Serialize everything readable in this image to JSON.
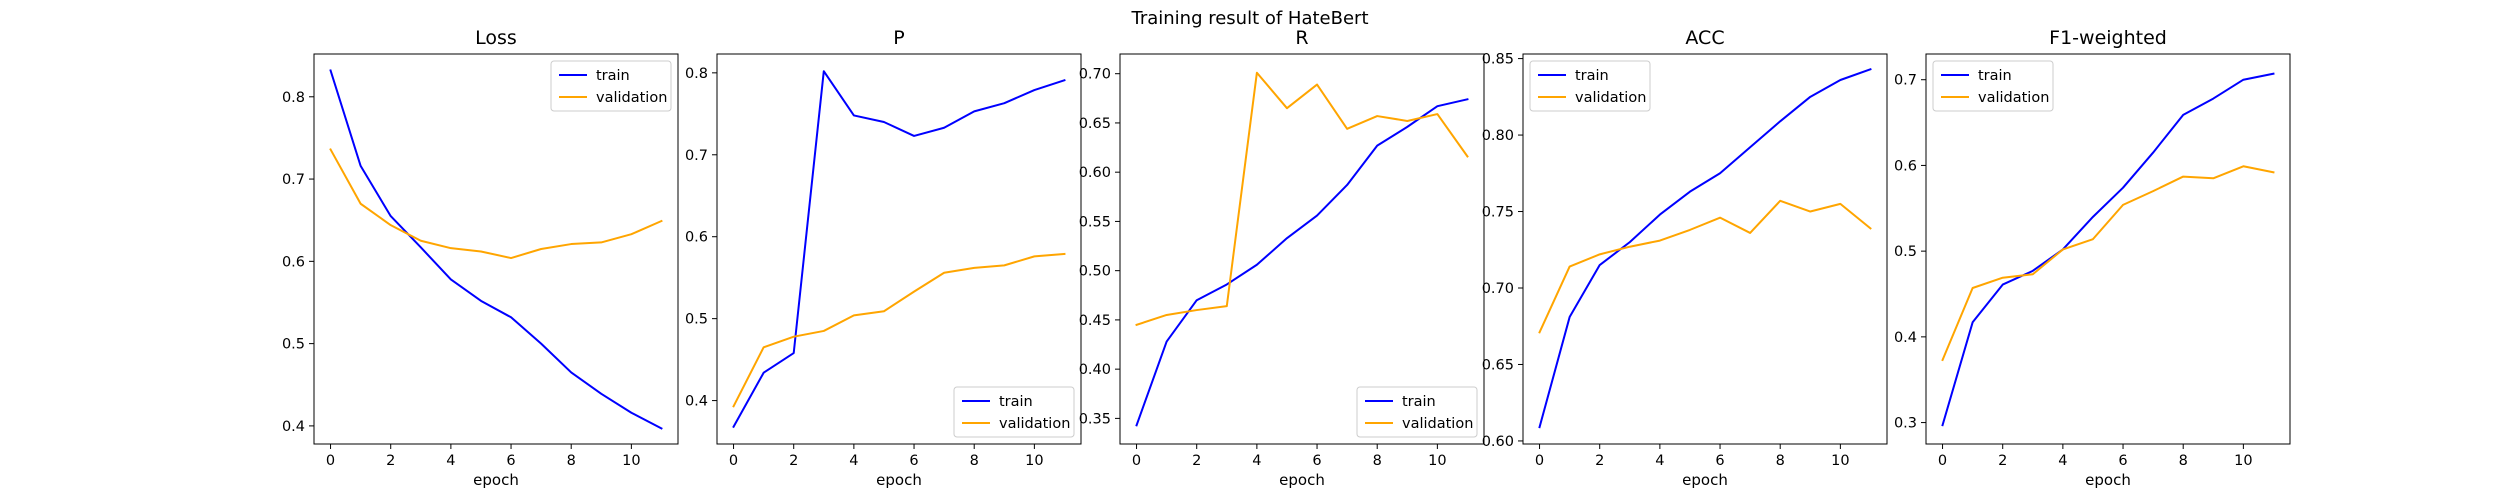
{
  "figure_title": "Training result of HateBert",
  "colors": {
    "train": "#0000ff",
    "validation": "#ffa500"
  },
  "chart_data": [
    {
      "type": "line",
      "title": "Loss",
      "xlabel": "epoch",
      "ylabel": "",
      "x": [
        0,
        1,
        2,
        3,
        4,
        5,
        6,
        7,
        8,
        9,
        10,
        11
      ],
      "xlim": [
        -0.55,
        11.55
      ],
      "ylim": [
        0.378,
        0.852
      ],
      "xticks": [
        "0",
        "2",
        "4",
        "6",
        "8",
        "10"
      ],
      "xtick_values": [
        0,
        2,
        4,
        6,
        8,
        10
      ],
      "yticks": [
        "0.4",
        "0.5",
        "0.6",
        "0.7",
        "0.8"
      ],
      "ytick_values": [
        0.4,
        0.5,
        0.6,
        0.7,
        0.8
      ],
      "legend": "top-right",
      "series": [
        {
          "name": "train",
          "color": "#0000ff",
          "values": [
            0.832,
            0.716,
            0.655,
            0.617,
            0.578,
            0.552,
            0.532,
            0.5,
            0.465,
            0.439,
            0.416,
            0.397
          ]
        },
        {
          "name": "validation",
          "color": "#ffa500",
          "values": [
            0.736,
            0.67,
            0.644,
            0.625,
            0.616,
            0.612,
            0.604,
            0.615,
            0.621,
            0.623,
            0.633,
            0.649
          ]
        }
      ]
    },
    {
      "type": "line",
      "title": "P",
      "xlabel": "epoch",
      "ylabel": "",
      "x": [
        0,
        1,
        2,
        3,
        4,
        5,
        6,
        7,
        8,
        9,
        10,
        11
      ],
      "xlim": [
        -0.55,
        11.55
      ],
      "ylim": [
        0.347,
        0.823
      ],
      "xticks": [
        "0",
        "2",
        "4",
        "6",
        "8",
        "10"
      ],
      "xtick_values": [
        0,
        2,
        4,
        6,
        8,
        10
      ],
      "yticks": [
        "0.4",
        "0.5",
        "0.6",
        "0.7",
        "0.8"
      ],
      "ytick_values": [
        0.4,
        0.5,
        0.6,
        0.7,
        0.8
      ],
      "legend": "bottom-right",
      "series": [
        {
          "name": "train",
          "color": "#0000ff",
          "values": [
            0.368,
            0.434,
            0.458,
            0.802,
            0.748,
            0.74,
            0.723,
            0.733,
            0.753,
            0.763,
            0.779,
            0.791
          ]
        },
        {
          "name": "validation",
          "color": "#ffa500",
          "values": [
            0.393,
            0.465,
            0.478,
            0.485,
            0.504,
            0.509,
            0.533,
            0.556,
            0.562,
            0.565,
            0.576,
            0.579
          ]
        }
      ]
    },
    {
      "type": "line",
      "title": "R",
      "xlabel": "epoch",
      "ylabel": "",
      "x": [
        0,
        1,
        2,
        3,
        4,
        5,
        6,
        7,
        8,
        9,
        10,
        11
      ],
      "xlim": [
        -0.55,
        11.55
      ],
      "ylim": [
        0.324,
        0.72
      ],
      "xticks": [
        "0",
        "2",
        "4",
        "6",
        "8",
        "10"
      ],
      "xtick_values": [
        0,
        2,
        4,
        6,
        8,
        10
      ],
      "yticks": [
        "0.35",
        "0.40",
        "0.45",
        "0.50",
        "0.55",
        "0.60",
        "0.65",
        "0.70"
      ],
      "ytick_values": [
        0.35,
        0.4,
        0.45,
        0.5,
        0.55,
        0.6,
        0.65,
        0.7
      ],
      "legend": "bottom-right",
      "series": [
        {
          "name": "train",
          "color": "#0000ff",
          "values": [
            0.343,
            0.428,
            0.47,
            0.486,
            0.506,
            0.533,
            0.556,
            0.587,
            0.627,
            0.646,
            0.667,
            0.674
          ]
        },
        {
          "name": "validation",
          "color": "#ffa500",
          "values": [
            0.445,
            0.455,
            0.46,
            0.464,
            0.701,
            0.665,
            0.689,
            0.644,
            0.657,
            0.652,
            0.659,
            0.616
          ]
        }
      ]
    },
    {
      "type": "line",
      "title": "ACC",
      "xlabel": "epoch",
      "ylabel": "",
      "x": [
        0,
        1,
        2,
        3,
        4,
        5,
        6,
        7,
        8,
        9,
        10,
        11
      ],
      "xlim": [
        -0.55,
        11.55
      ],
      "ylim": [
        0.598,
        0.853
      ],
      "xticks": [
        "0",
        "2",
        "4",
        "6",
        "8",
        "10"
      ],
      "xtick_values": [
        0,
        2,
        4,
        6,
        8,
        10
      ],
      "yticks": [
        "0.60",
        "0.65",
        "0.70",
        "0.75",
        "0.80",
        "0.85"
      ],
      "ytick_values": [
        0.6,
        0.65,
        0.7,
        0.75,
        0.8,
        0.85
      ],
      "legend": "top-left",
      "series": [
        {
          "name": "train",
          "color": "#0000ff",
          "values": [
            0.609,
            0.681,
            0.715,
            0.73,
            0.748,
            0.763,
            0.775,
            0.792,
            0.809,
            0.825,
            0.836,
            0.843
          ]
        },
        {
          "name": "validation",
          "color": "#ffa500",
          "values": [
            0.671,
            0.714,
            0.722,
            0.727,
            0.731,
            0.738,
            0.746,
            0.736,
            0.757,
            0.75,
            0.755,
            0.739
          ]
        }
      ]
    },
    {
      "type": "line",
      "title": "F1-weighted",
      "xlabel": "epoch",
      "ylabel": "",
      "x": [
        0,
        1,
        2,
        3,
        4,
        5,
        6,
        7,
        8,
        9,
        10,
        11
      ],
      "xlim": [
        -0.55,
        11.55
      ],
      "ylim": [
        0.275,
        0.73
      ],
      "xticks": [
        "0",
        "2",
        "4",
        "6",
        "8",
        "10"
      ],
      "xtick_values": [
        0,
        2,
        4,
        6,
        8,
        10
      ],
      "yticks": [
        "0.3",
        "0.4",
        "0.5",
        "0.6",
        "0.7"
      ],
      "ytick_values": [
        0.3,
        0.4,
        0.5,
        0.6,
        0.7
      ],
      "legend": "top-left",
      "series": [
        {
          "name": "train",
          "color": "#0000ff",
          "values": [
            0.297,
            0.417,
            0.461,
            0.477,
            0.502,
            0.54,
            0.574,
            0.615,
            0.659,
            0.678,
            0.7,
            0.707
          ]
        },
        {
          "name": "validation",
          "color": "#ffa500",
          "values": [
            0.373,
            0.457,
            0.469,
            0.473,
            0.502,
            0.514,
            0.554,
            0.57,
            0.587,
            0.585,
            0.599,
            0.592
          ]
        }
      ]
    }
  ]
}
